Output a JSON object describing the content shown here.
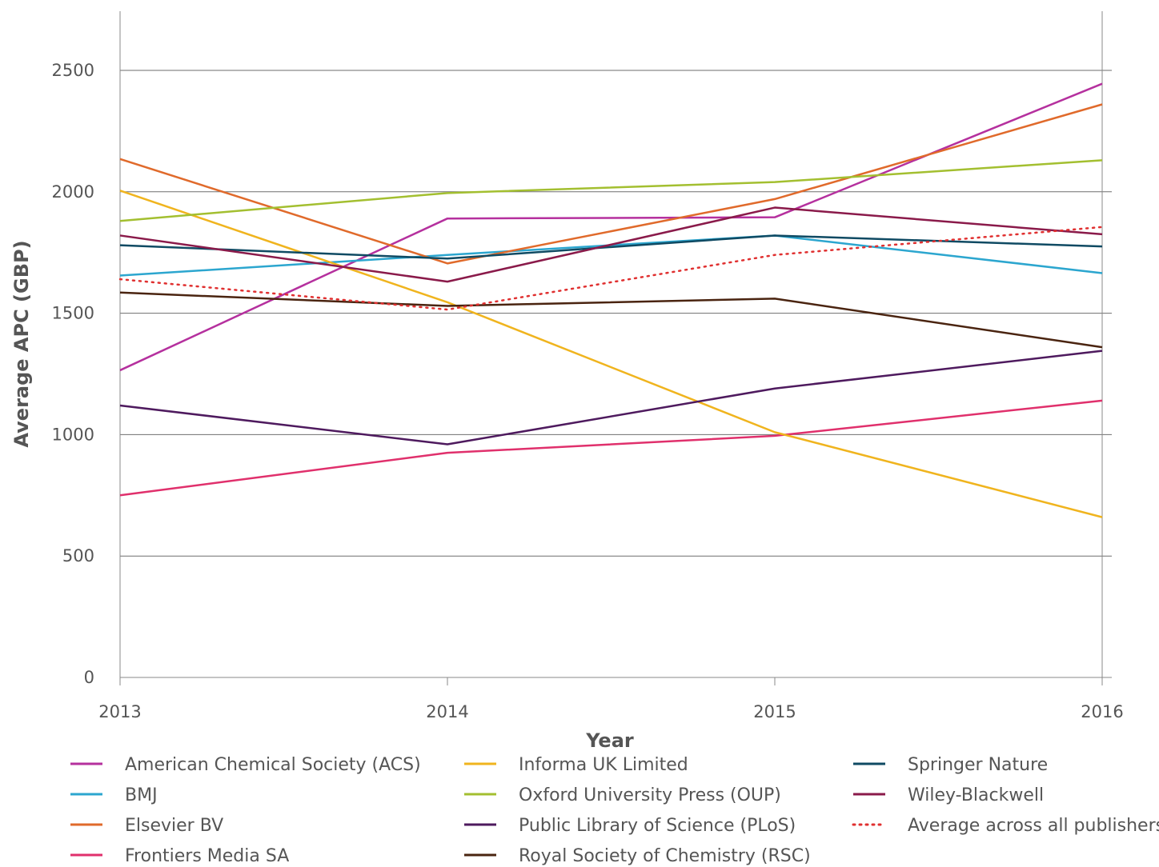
{
  "chart_data": {
    "type": "line",
    "title": "",
    "xlabel": "Year",
    "ylabel": "Average APC (GBP)",
    "x": [
      "2013",
      "2014",
      "2015",
      "2016"
    ],
    "yticks": [
      "0",
      "500",
      "1000",
      "1500",
      "2000",
      "2500"
    ],
    "ylim": [
      0,
      2750
    ],
    "grid": "horizontal",
    "legend_position": "bottom",
    "series": [
      {
        "name": "American Chemical Society (ACS)",
        "color": "#b5309e",
        "dash": "solid",
        "values": [
          1265,
          1890,
          1895,
          2445
        ]
      },
      {
        "name": "BMJ",
        "color": "#2ca6cf",
        "dash": "solid",
        "values": [
          1655,
          1740,
          1820,
          1665
        ]
      },
      {
        "name": "Elsevier BV",
        "color": "#e06a2b",
        "dash": "solid",
        "values": [
          2135,
          1705,
          1970,
          2360
        ]
      },
      {
        "name": "Frontiers Media SA",
        "color": "#e0306c",
        "dash": "solid",
        "values": [
          750,
          925,
          995,
          1140
        ]
      },
      {
        "name": "Informa UK Limited",
        "color": "#f0b41e",
        "dash": "solid",
        "values": [
          2005,
          1545,
          1010,
          660
        ]
      },
      {
        "name": "Oxford University Press (OUP)",
        "color": "#a3bf30",
        "dash": "solid",
        "values": [
          1880,
          1995,
          2040,
          2130
        ]
      },
      {
        "name": "Public Library of Science (PLoS)",
        "color": "#4e1a5e",
        "dash": "solid",
        "values": [
          1120,
          960,
          1190,
          1345
        ]
      },
      {
        "name": "Royal Society of Chemistry (RSC)",
        "color": "#4a2410",
        "dash": "solid",
        "values": [
          1585,
          1530,
          1560,
          1360
        ]
      },
      {
        "name": "Springer Nature",
        "color": "#0f4a63",
        "dash": "solid",
        "values": [
          1780,
          1725,
          1820,
          1775
        ]
      },
      {
        "name": "Wiley-Blackwell",
        "color": "#8a1a4a",
        "dash": "solid",
        "values": [
          1820,
          1630,
          1935,
          1825
        ]
      },
      {
        "name": "Average across all publishers",
        "color": "#e03030",
        "dash": "dotted",
        "values": [
          1640,
          1515,
          1740,
          1855
        ]
      }
    ]
  }
}
